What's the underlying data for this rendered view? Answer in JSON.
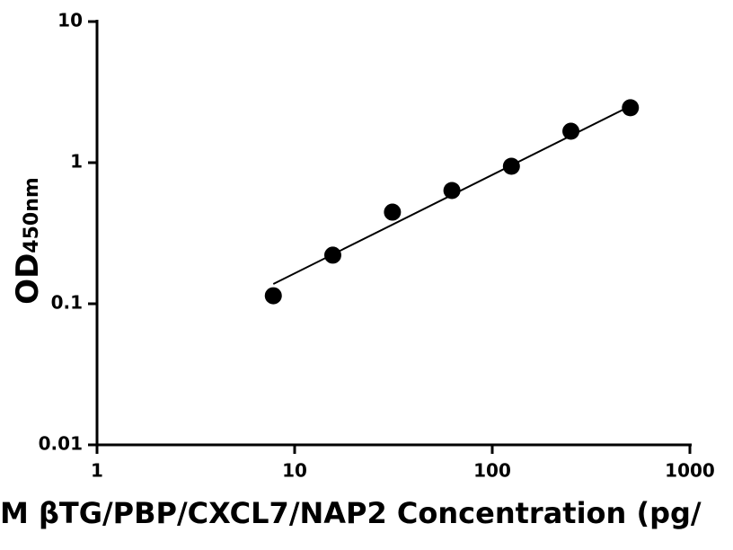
{
  "chart_data": {
    "type": "scatter",
    "x_label": "M βTG/PBP/CXCL7/NAP2 Concentration (pg/",
    "y_label": "OD",
    "y_label_subscript": "450nm",
    "x": [
      7.8,
      15.6,
      31.25,
      62.5,
      125,
      250,
      500
    ],
    "values": [
      0.114,
      0.221,
      0.446,
      0.635,
      0.943,
      1.67,
      2.45
    ],
    "color": "#000000",
    "fit_line": {
      "x": [
        7.8,
        500
      ],
      "values": [
        0.138,
        2.52
      ],
      "color": "#000000"
    },
    "x_log": true,
    "y_log": true,
    "xlim": [
      1,
      1000
    ],
    "xticks": [
      1,
      10,
      100,
      1000
    ],
    "ylim": [
      0.01,
      10
    ],
    "yticks": [
      0.01,
      0.1,
      1,
      10
    ],
    "grid": false
  }
}
